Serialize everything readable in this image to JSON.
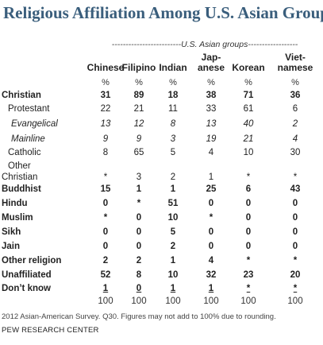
{
  "title": "Religious Affiliation Among U.S. Asian Groups",
  "group_header": "-------------------------U.S. Asian groups------------------",
  "columns": [
    {
      "line1": "",
      "line2": "Chinese"
    },
    {
      "line1": "",
      "line2": "Filipino"
    },
    {
      "line1": "",
      "line2": "Indian"
    },
    {
      "line1": "Jap-",
      "line2": "anese"
    },
    {
      "line1": "",
      "line2": "Korean"
    },
    {
      "line1": "Viet-",
      "line2": "namese"
    }
  ],
  "percent_sign": "%",
  "rows": [
    {
      "label": "Christian",
      "values": [
        "31",
        "89",
        "18",
        "38",
        "71",
        "36"
      ]
    },
    {
      "label": "Protestant",
      "values": [
        "22",
        "21",
        "11",
        "33",
        "61",
        "6"
      ]
    },
    {
      "label": "Evangelical",
      "values": [
        "13",
        "12",
        "8",
        "13",
        "40",
        "2"
      ]
    },
    {
      "label": "Mainline",
      "values": [
        "9",
        "9",
        "3",
        "19",
        "21",
        "4"
      ]
    },
    {
      "label": "Catholic",
      "values": [
        "8",
        "65",
        "5",
        "4",
        "10",
        "30"
      ]
    },
    {
      "label_line1": "Other",
      "label_line2": "Christian",
      "values": [
        "*",
        "3",
        "2",
        "1",
        "*",
        "*"
      ]
    },
    {
      "label": "Buddhist",
      "values": [
        "15",
        "1",
        "1",
        "25",
        "6",
        "43"
      ]
    },
    {
      "label": "Hindu",
      "values": [
        "0",
        "*",
        "51",
        "0",
        "0",
        "0"
      ]
    },
    {
      "label": "Muslim",
      "values": [
        "*",
        "0",
        "10",
        "*",
        "0",
        "0"
      ]
    },
    {
      "label": "Sikh",
      "values": [
        "0",
        "0",
        "5",
        "0",
        "0",
        "0"
      ]
    },
    {
      "label": "Jain",
      "values": [
        "0",
        "0",
        "2",
        "0",
        "0",
        "0"
      ]
    },
    {
      "label": "Other religion",
      "values": [
        "2",
        "2",
        "1",
        "4",
        "*",
        "*"
      ]
    },
    {
      "label": "Unaffiliated",
      "values": [
        "52",
        "8",
        "10",
        "32",
        "23",
        "20"
      ]
    },
    {
      "label": "Don’t know",
      "values": [
        "1",
        "0",
        "1",
        "1",
        "*",
        "*"
      ]
    }
  ],
  "totals": [
    "100",
    "100",
    "100",
    "100",
    "100",
    "100"
  ],
  "footnote": "2012 Asian-American Survey. Q30. Figures may not add to 100% due to rounding.",
  "source": "PEW RESEARCH CENTER"
}
